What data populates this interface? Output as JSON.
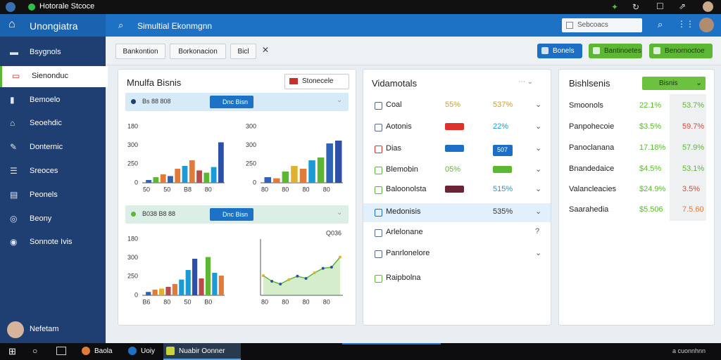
{
  "titlebar": {
    "title": "Hotorale Stcoce"
  },
  "header": {
    "app": "Unongiatra",
    "search": "Simultial Ekonmgnn",
    "search_box": "Sebcoacs"
  },
  "sidebar": {
    "items": [
      "Bsygnols",
      "Sienonduc",
      "Bemoelo",
      "Seoehdic",
      "Donternic",
      "Sreoces",
      "Peonels",
      "Beony",
      "Sonnote Ivis"
    ],
    "selected": 1,
    "user": "Nefetam"
  },
  "toolbar": {
    "tabs": [
      "Bankontion",
      "Borkonacion",
      "Bicl"
    ],
    "actions": [
      {
        "label": "Bonels",
        "color": "#1c6fc4"
      },
      {
        "label": "Bantinoetes",
        "color": "#5cb832"
      },
      {
        "label": "Benornoctoe",
        "color": "#5cb832"
      }
    ]
  },
  "panel1": {
    "title": "Mnulfa Bisnis",
    "dropdown": "Stonecele",
    "sections": [
      {
        "label": "Bs 88 808",
        "button": "Dnc Bisn",
        "color": "#d6eaf8",
        "charts": [
          {
            "type": "bar",
            "ylabels": [
              "180",
              "300",
              "250",
              "0"
            ],
            "xlabels": [
              "50",
              "50",
              "B8",
              "80"
            ],
            "ylim": [
              0,
              100
            ],
            "values": [
              5,
              10,
              15,
              12,
              25,
              30,
              40,
              22,
              18,
              28,
              72
            ],
            "colors": [
              "#2e63b8",
              "#5cb832",
              "#e07b39",
              "#2e63b8",
              "#e07b39",
              "#1c9ad6",
              "#e07b39",
              "#b84a4a",
              "#5cb832",
              "#1c9ad6",
              "#2e4fa8"
            ]
          },
          {
            "type": "bar",
            "ylabels": [
              "300",
              "300",
              "250",
              "0"
            ],
            "xlabels": [
              "80",
              "80",
              "80",
              "80"
            ],
            "ylim": [
              0,
              100
            ],
            "values": [
              10,
              8,
              20,
              30,
              25,
              40,
              45,
              70,
              75
            ],
            "colors": [
              "#2e63b8",
              "#e07b39",
              "#5cb832",
              "#e0b030",
              "#e07b39",
              "#1c9ad6",
              "#5cb832",
              "#2e63b8",
              "#2e4fa8"
            ]
          }
        ]
      },
      {
        "label": "B038 B8 88",
        "button": "Dnc Bisn",
        "color": "#dcefe6",
        "charts": [
          {
            "type": "bar",
            "ylabels": [
              "180",
              "300",
              "250",
              "0"
            ],
            "xlabels": [
              "B6",
              "80",
              "50",
              "B0"
            ],
            "ylim": [
              0,
              100
            ],
            "values": [
              6,
              10,
              12,
              15,
              20,
              28,
              45,
              65,
              30,
              68,
              40,
              35
            ],
            "colors": [
              "#2e63b8",
              "#e07b39",
              "#e0b030",
              "#b84a4a",
              "#e07b39",
              "#1c9ad6",
              "#1c9ad6",
              "#2e4fa8",
              "#b84a4a",
              "#5cb832",
              "#1c9ad6",
              "#e07b39"
            ]
          },
          {
            "type": "line",
            "label": "Q036",
            "xlabels": [
              "80",
              "80",
              "80",
              "80"
            ],
            "ylim": [
              0,
              100
            ],
            "values": [
              35,
              25,
              20,
              28,
              34,
              30,
              40,
              48,
              50,
              68
            ],
            "color": "#5cb832"
          }
        ]
      }
    ]
  },
  "panel2": {
    "title": "Vidamotals",
    "rows": [
      {
        "name": "Coal",
        "icon": "#5a6b80",
        "v1": {
          "text": "55%",
          "color": "#d4a017"
        },
        "v2": {
          "text": "537%",
          "color": "#d4a017"
        }
      },
      {
        "name": "Aotonis",
        "icon": "#5a6b80",
        "v1": {
          "badge": "#e0302a"
        },
        "v2": {
          "text": "22%",
          "color": "#1c9ad6"
        }
      },
      {
        "name": "Dias",
        "icon": "#e0302a",
        "v1": {
          "badge": "#1c6fc4"
        },
        "v2": {
          "text": "507",
          "badge": "#1c6fc4",
          "color": "#ffffff"
        }
      },
      {
        "name": "Blemobin",
        "icon": "#5cb832",
        "v1": {
          "text": "05%",
          "color": "#5cb832"
        },
        "v2": {
          "badge": "#5cb832"
        }
      },
      {
        "name": "Baloonolsta",
        "icon": "#5cb832",
        "v1": {
          "badge": "#6a2436"
        },
        "v2": {
          "text": "515%",
          "color": "#1c9ad6"
        }
      },
      {
        "name": "Medonisis",
        "icon": "#1c6fc4",
        "v2": {
          "text": "535%",
          "color": "#333333"
        }
      },
      {
        "name": "Arlelonane",
        "icon": "#5a6b80"
      },
      {
        "name": "Panrlonelore",
        "icon": "#5a6b80"
      },
      {
        "name": "Raipbolna",
        "icon": "#5cb832"
      }
    ],
    "highlighted": 5
  },
  "panel3": {
    "title": "Bishlsenis",
    "dropdown": "Bisnis",
    "rows": [
      {
        "name": "Smoonols",
        "v1": "22.1%",
        "v2": "53.7%",
        "c1": "#5cb832",
        "c2": "#5cb832"
      },
      {
        "name": "Panpohecoie",
        "v1": "$3.5%",
        "v2": "59.7%",
        "c1": "#5cb832",
        "c2": "#d64a3a"
      },
      {
        "name": "Panoclanana",
        "v1": "17.18%",
        "v2": "57.9%",
        "c1": "#5cb832",
        "c2": "#5cb832"
      },
      {
        "name": "Bnandedaice",
        "v1": "$4.5%",
        "v2": "53.1%",
        "c1": "#5cb832",
        "c2": "#5cb832"
      },
      {
        "name": "Valancleacies",
        "v1": "$24.9%",
        "v2": "3.5%",
        "c1": "#5cb832",
        "c2": "#d64a3a"
      },
      {
        "name": "Saarahedia",
        "v1": "$5.506",
        "v2": "7.5.60",
        "c1": "#5cb832",
        "c2": "#e07b39"
      }
    ]
  },
  "taskbar": {
    "items": [
      "Baola",
      "Uoiy",
      "Nuabir Oonner"
    ],
    "active": 2,
    "tray": "a cuonnhnn"
  }
}
